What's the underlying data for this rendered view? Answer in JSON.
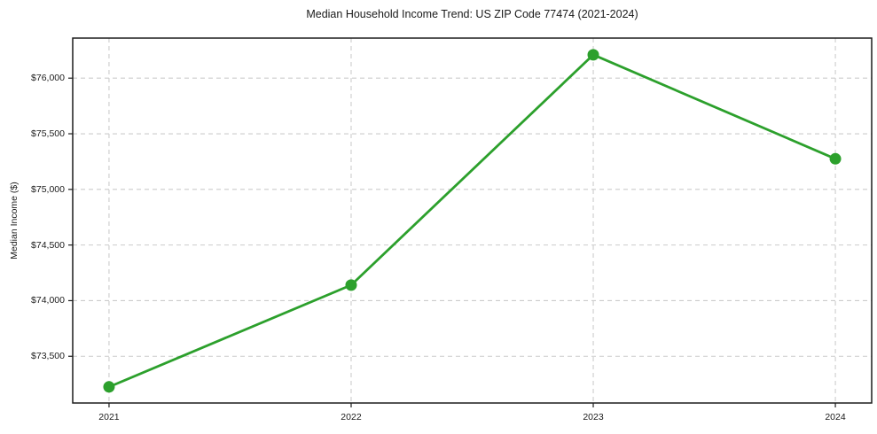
{
  "chart_data": {
    "type": "line",
    "title": "Median Household Income Trend: US ZIP Code 77474 (2021-2024)",
    "xlabel": "",
    "ylabel": "Median Income ($)",
    "categories": [
      "2021",
      "2022",
      "2023",
      "2024"
    ],
    "values": [
      73225,
      74140,
      76210,
      75275
    ],
    "xticks": [
      {
        "index": 0,
        "label": "2021"
      },
      {
        "index": 1,
        "label": "2022"
      },
      {
        "index": 2,
        "label": "2023"
      },
      {
        "index": 3,
        "label": "2024"
      }
    ],
    "yticks": [
      {
        "value": 73500,
        "label": "$73,500"
      },
      {
        "value": 74000,
        "label": "$74,000"
      },
      {
        "value": 74500,
        "label": "$74,500"
      },
      {
        "value": 75000,
        "label": "$75,000"
      },
      {
        "value": 75500,
        "label": "$75,500"
      },
      {
        "value": 76000,
        "label": "$76,000"
      }
    ],
    "ylim": [
      73080,
      76360
    ],
    "x_margin_fraction": 0.05,
    "grid": true,
    "grid_style": "dashed",
    "legend_position": "none",
    "colors": {
      "line": "#2ca02c",
      "marker": "#2ca02c",
      "grid": "#cccccc",
      "frame": "#1c1c1c",
      "text": "#1a1a1a",
      "background": "#ffffff"
    }
  }
}
